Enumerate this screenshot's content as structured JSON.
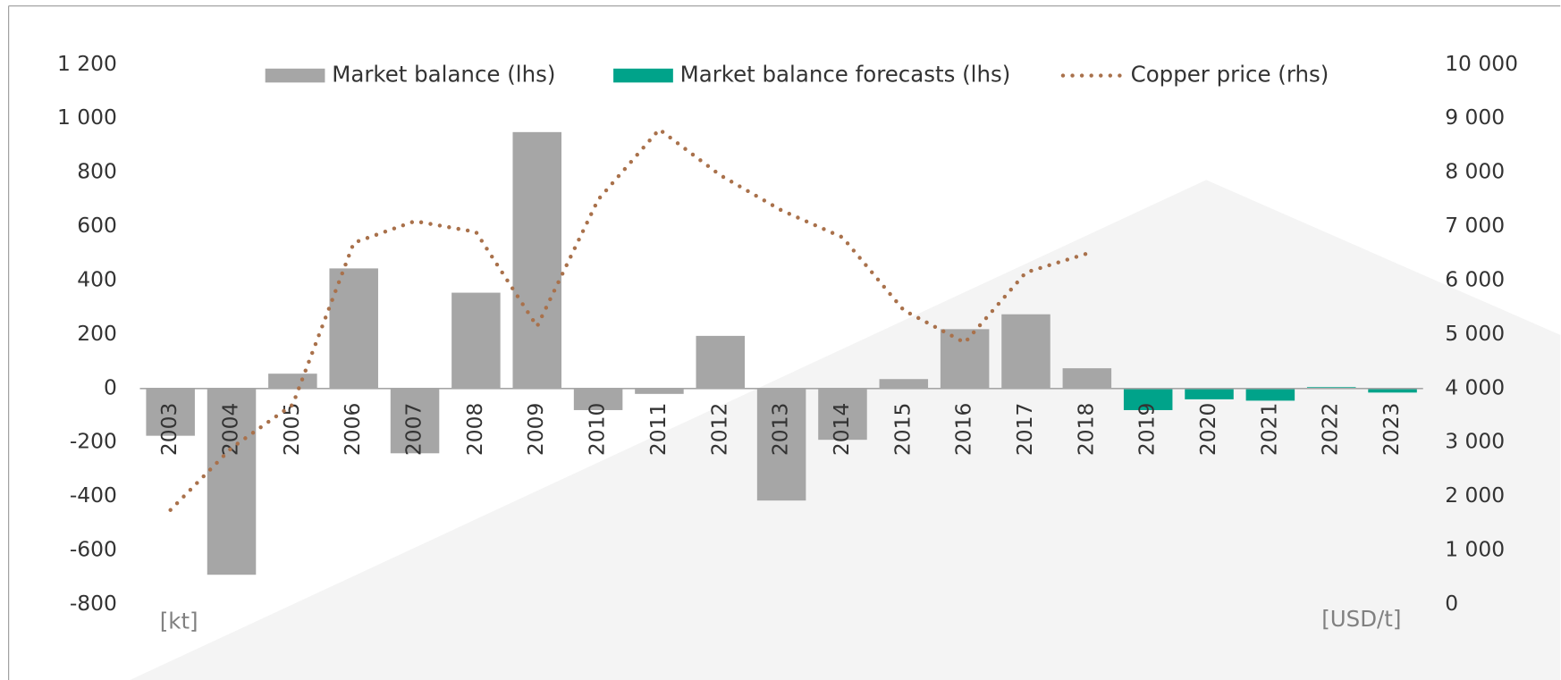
{
  "chart_data": {
    "type": "bar-line",
    "categories": [
      "2003",
      "2004",
      "2005",
      "2006",
      "2007",
      "2008",
      "2009",
      "2010",
      "2011",
      "2012",
      "2013",
      "2014",
      "2015",
      "2016",
      "2017",
      "2018",
      "2019",
      "2020",
      "2021",
      "2022",
      "2023"
    ],
    "series": [
      {
        "name": "Market balance (lhs)",
        "color": "#a6a6a6",
        "type": "bar",
        "values": [
          -175,
          -690,
          55,
          445,
          -240,
          355,
          950,
          -80,
          -20,
          195,
          -415,
          -190,
          35,
          220,
          275,
          75,
          null,
          null,
          null,
          null,
          null
        ]
      },
      {
        "name": "Market balance forecasts (lhs)",
        "color": "#00a38a",
        "type": "bar",
        "values": [
          null,
          null,
          null,
          null,
          null,
          null,
          null,
          null,
          null,
          null,
          null,
          null,
          null,
          null,
          null,
          null,
          -80,
          -40,
          -45,
          5,
          -15
        ]
      },
      {
        "name": "Copper price (rhs)",
        "color": "#a9714b",
        "type": "line",
        "axis": "y2",
        "values": [
          1750,
          2900,
          3700,
          6700,
          7100,
          6900,
          5150,
          7500,
          8800,
          7950,
          7300,
          6800,
          5450,
          4850,
          6150,
          6500,
          null,
          null,
          null,
          null,
          null
        ]
      }
    ],
    "ylim": [
      -800,
      1200
    ],
    "yticks": [
      -800,
      -600,
      -400,
      -200,
      0,
      200,
      400,
      600,
      800,
      {
        "value": 1000,
        "label": "1 000"
      },
      {
        "value": 1200,
        "label": "1 200"
      }
    ],
    "y2lim": [
      0,
      10000
    ],
    "y2ticks": [
      0,
      {
        "value": 1000,
        "label": "1 000"
      },
      {
        "value": 2000,
        "label": "2 000"
      },
      {
        "value": 3000,
        "label": "3 000"
      },
      {
        "value": 4000,
        "label": "4 000"
      },
      {
        "value": 5000,
        "label": "5 000"
      },
      {
        "value": 6000,
        "label": "6 000"
      },
      {
        "value": 7000,
        "label": "7 000"
      },
      {
        "value": 8000,
        "label": "8 000"
      },
      {
        "value": 9000,
        "label": "9 000"
      },
      {
        "value": 10000,
        "label": "10 000"
      }
    ],
    "annotations": [
      "[kt]",
      "[USD/t]"
    ],
    "legend": "top"
  }
}
